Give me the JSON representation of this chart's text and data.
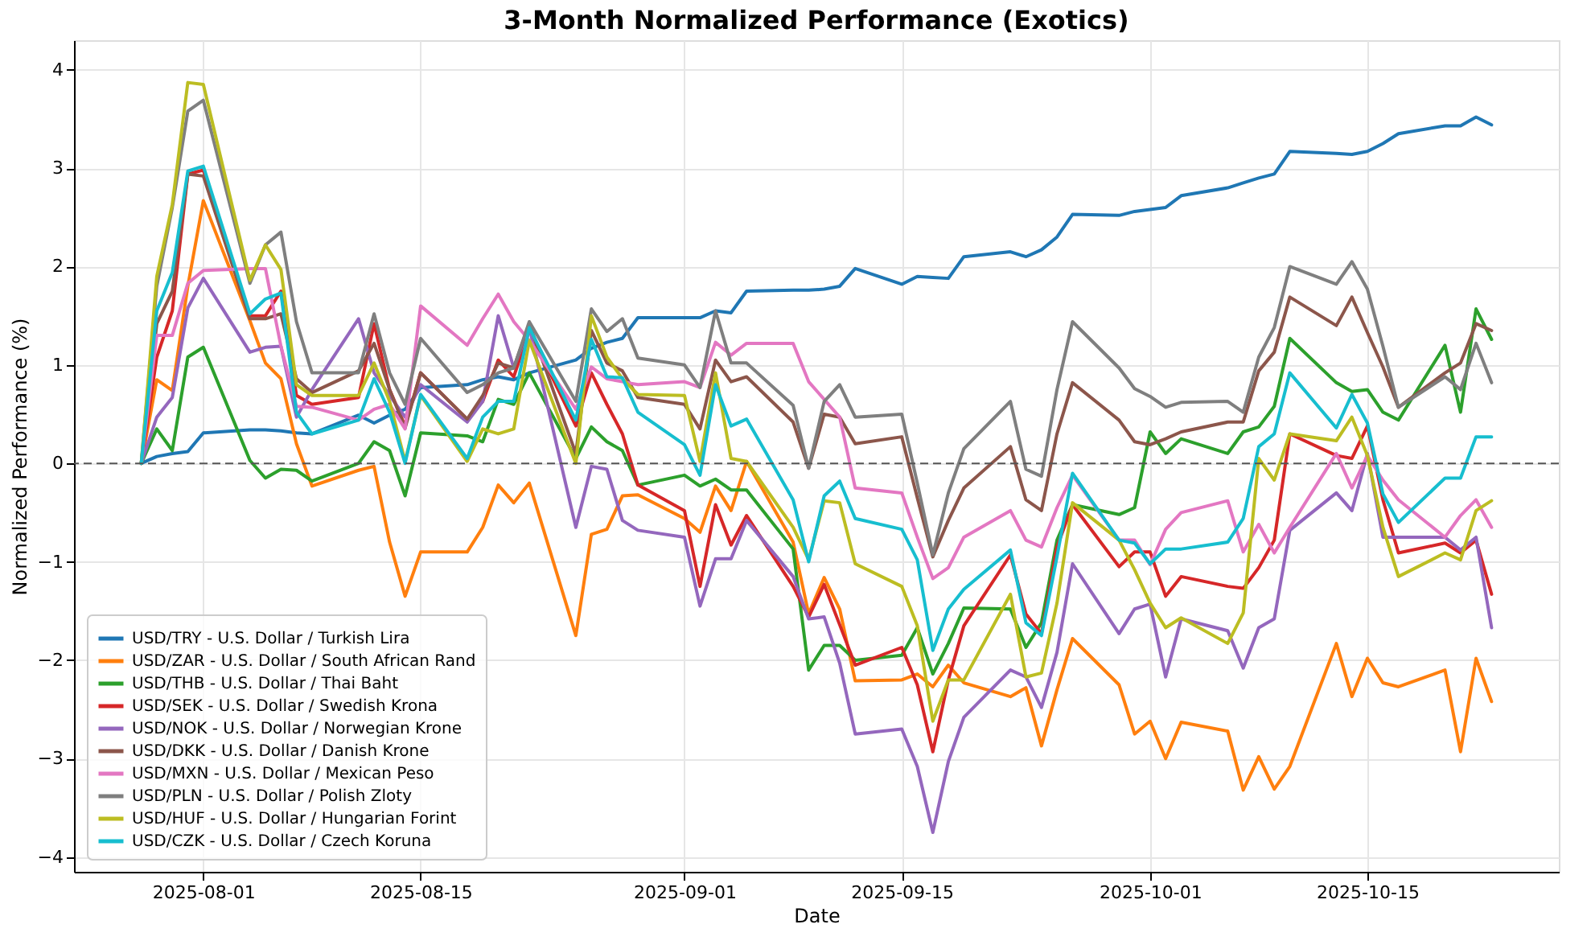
{
  "chart_data": {
    "type": "line",
    "title": "3-Month Normalized Performance (Exotics)",
    "xlabel": "Date",
    "ylabel": "Normalized Performance (%)",
    "x": [
      "2025-07-28",
      "2025-07-29",
      "2025-07-30",
      "2025-07-31",
      "2025-08-01",
      "2025-08-04",
      "2025-08-05",
      "2025-08-06",
      "2025-08-07",
      "2025-08-08",
      "2025-08-11",
      "2025-08-12",
      "2025-08-13",
      "2025-08-14",
      "2025-08-15",
      "2025-08-18",
      "2025-08-19",
      "2025-08-20",
      "2025-08-21",
      "2025-08-22",
      "2025-08-25",
      "2025-08-26",
      "2025-08-27",
      "2025-08-28",
      "2025-08-29",
      "2025-09-01",
      "2025-09-02",
      "2025-09-03",
      "2025-09-04",
      "2025-09-05",
      "2025-09-08",
      "2025-09-09",
      "2025-09-10",
      "2025-09-11",
      "2025-09-12",
      "2025-09-15",
      "2025-09-16",
      "2025-09-17",
      "2025-09-18",
      "2025-09-19",
      "2025-09-22",
      "2025-09-23",
      "2025-09-24",
      "2025-09-25",
      "2025-09-26",
      "2025-09-29",
      "2025-09-30",
      "2025-10-01",
      "2025-10-02",
      "2025-10-03",
      "2025-10-06",
      "2025-10-07",
      "2025-10-08",
      "2025-10-09",
      "2025-10-10",
      "2025-10-13",
      "2025-10-14",
      "2025-10-15",
      "2025-10-16",
      "2025-10-17",
      "2025-10-20",
      "2025-10-21",
      "2025-10-22",
      "2025-10-23"
    ],
    "series": [
      {
        "name": "USD/TRY - U.S. Dollar / Turkish Lira",
        "color": "#1f77b4",
        "values": [
          0,
          0.07,
          0.1,
          0.12,
          0.31,
          0.34,
          0.34,
          0.33,
          0.31,
          0.3,
          0.49,
          0.41,
          0.49,
          0.55,
          0.77,
          0.8,
          0.85,
          0.88,
          0.85,
          0.92,
          1.05,
          1.17,
          1.23,
          1.27,
          1.48,
          1.48,
          1.48,
          1.55,
          1.53,
          1.75,
          1.76,
          1.76,
          1.77,
          1.8,
          1.98,
          1.82,
          1.9,
          1.89,
          1.88,
          2.1,
          2.15,
          2.1,
          2.17,
          2.3,
          2.53,
          2.52,
          2.56,
          2.58,
          2.6,
          2.72,
          2.8,
          2.85,
          2.9,
          2.94,
          3.17,
          3.15,
          3.14,
          3.17,
          3.25,
          3.35,
          3.43,
          3.43,
          3.52,
          3.44
        ]
      },
      {
        "name": "USD/ZAR - U.S. Dollar / South African Rand",
        "color": "#ff7f0e",
        "values": [
          0,
          0.85,
          0.74,
          1.8,
          2.67,
          1.45,
          1.02,
          0.86,
          0.2,
          -0.23,
          -0.07,
          -0.03,
          -0.8,
          -1.35,
          -0.9,
          -0.9,
          -0.65,
          -0.22,
          -0.4,
          -0.2,
          -1.75,
          -0.72,
          -0.67,
          -0.33,
          -0.32,
          -0.56,
          -0.7,
          -0.23,
          -0.48,
          0.02,
          -0.8,
          -1.53,
          -1.16,
          -1.48,
          -2.21,
          -2.2,
          -2.14,
          -2.27,
          -2.05,
          -2.23,
          -2.37,
          -2.28,
          -2.87,
          -2.3,
          -1.78,
          -2.25,
          -2.75,
          -2.62,
          -3.0,
          -2.63,
          -2.72,
          -3.32,
          -2.98,
          -3.31,
          -3.08,
          -1.83,
          -2.37,
          -1.98,
          -2.23,
          -2.27,
          -2.1,
          -2.93,
          -1.98,
          -2.42
        ]
      },
      {
        "name": "USD/THB - U.S. Dollar / Thai Baht",
        "color": "#2ca02c",
        "values": [
          0,
          0.35,
          0.13,
          1.08,
          1.18,
          0.03,
          -0.15,
          -0.06,
          -0.07,
          -0.18,
          0.0,
          0.22,
          0.13,
          -0.33,
          0.31,
          0.28,
          0.22,
          0.65,
          0.6,
          0.92,
          0.05,
          0.37,
          0.22,
          0.13,
          -0.22,
          -0.12,
          -0.23,
          -0.16,
          -0.27,
          -0.27,
          -0.87,
          -2.1,
          -1.85,
          -1.85,
          -2.0,
          -1.95,
          -1.67,
          -2.14,
          -1.83,
          -1.47,
          -1.48,
          -1.87,
          -1.62,
          -0.78,
          -0.42,
          -0.52,
          -0.45,
          0.32,
          0.1,
          0.25,
          0.1,
          0.32,
          0.37,
          0.58,
          1.27,
          0.82,
          0.73,
          0.75,
          0.52,
          0.44,
          1.2,
          0.52,
          1.57,
          1.26
        ]
      },
      {
        "name": "USD/SEK - U.S. Dollar / Swedish Krona",
        "color": "#d62728",
        "values": [
          0,
          1.08,
          1.55,
          2.94,
          2.98,
          1.5,
          1.5,
          1.75,
          0.69,
          0.6,
          0.67,
          1.42,
          0.75,
          0.38,
          0.92,
          0.45,
          0.63,
          1.05,
          0.88,
          1.35,
          0.38,
          0.92,
          0.6,
          0.3,
          -0.22,
          -0.48,
          -1.25,
          -0.42,
          -0.83,
          -0.53,
          -1.25,
          -1.56,
          -1.23,
          -1.64,
          -2.05,
          -1.87,
          -2.25,
          -2.93,
          -2.2,
          -1.65,
          -0.93,
          -1.53,
          -1.73,
          -0.85,
          -0.42,
          -1.05,
          -0.9,
          -0.9,
          -1.35,
          -1.15,
          -1.25,
          -1.27,
          -1.06,
          -0.78,
          0.3,
          0.08,
          0.05,
          0.38,
          -0.37,
          -0.91,
          -0.81,
          -0.91,
          -0.78,
          -1.33
        ]
      },
      {
        "name": "USD/NOK - U.S. Dollar / Norwegian Krone",
        "color": "#9467bd",
        "values": [
          0,
          0.47,
          0.67,
          1.58,
          1.88,
          1.13,
          1.18,
          1.19,
          0.47,
          0.75,
          1.47,
          0.92,
          0.69,
          0.47,
          0.8,
          0.42,
          0.63,
          1.5,
          0.97,
          1.38,
          -0.65,
          -0.03,
          -0.06,
          -0.58,
          -0.68,
          -0.75,
          -1.45,
          -0.97,
          -0.97,
          -0.58,
          -1.15,
          -1.58,
          -1.56,
          -2.03,
          -2.75,
          -2.7,
          -3.08,
          -3.75,
          -3.03,
          -2.58,
          -2.1,
          -2.17,
          -2.48,
          -1.92,
          -1.02,
          -1.73,
          -1.48,
          -1.43,
          -2.17,
          -1.58,
          -1.7,
          -2.08,
          -1.67,
          -1.58,
          -0.68,
          -0.3,
          -0.48,
          0.1,
          -0.75,
          -0.75,
          -0.75,
          -0.88,
          -0.75,
          -1.67
        ]
      },
      {
        "name": "USD/DKK - U.S. Dollar / Danish Krone",
        "color": "#8c564b",
        "values": [
          0,
          1.42,
          1.75,
          2.94,
          2.92,
          1.47,
          1.47,
          1.52,
          0.86,
          0.72,
          0.94,
          1.22,
          0.75,
          0.36,
          0.92,
          0.45,
          0.69,
          1.02,
          0.97,
          1.42,
          0.1,
          1.35,
          1.02,
          0.94,
          0.67,
          0.6,
          0.35,
          1.05,
          0.83,
          0.88,
          0.42,
          -0.05,
          0.5,
          0.47,
          0.2,
          0.27,
          -0.35,
          -0.95,
          -0.58,
          -0.25,
          0.17,
          -0.37,
          -0.48,
          0.3,
          0.82,
          0.44,
          0.22,
          0.19,
          0.25,
          0.32,
          0.42,
          0.42,
          0.94,
          1.13,
          1.69,
          1.4,
          1.69,
          1.33,
          0.98,
          0.57,
          0.92,
          1.02,
          1.42,
          1.35
        ]
      },
      {
        "name": "USD/MXN - U.S. Dollar / Mexican Peso",
        "color": "#e377c2",
        "values": [
          0,
          1.3,
          1.3,
          1.83,
          1.96,
          1.98,
          1.98,
          1.19,
          0.58,
          0.57,
          0.44,
          0.55,
          0.6,
          0.35,
          1.6,
          1.2,
          1.47,
          1.72,
          1.44,
          1.25,
          0.55,
          0.98,
          0.86,
          0.83,
          0.8,
          0.83,
          0.77,
          1.23,
          1.1,
          1.22,
          1.22,
          0.83,
          0.65,
          0.47,
          -0.25,
          -0.3,
          -0.75,
          -1.17,
          -1.06,
          -0.75,
          -0.48,
          -0.78,
          -0.85,
          -0.45,
          -0.12,
          -0.78,
          -0.78,
          -1.03,
          -0.67,
          -0.5,
          -0.38,
          -0.9,
          -0.62,
          -0.91,
          -0.65,
          0.1,
          -0.25,
          0.08,
          -0.17,
          -0.37,
          -0.75,
          -0.53,
          -0.37,
          -0.65
        ]
      },
      {
        "name": "USD/PLN - U.S. Dollar / Polish Zloty",
        "color": "#7f7f7f",
        "values": [
          0,
          1.8,
          2.6,
          3.58,
          3.69,
          1.83,
          2.22,
          2.35,
          1.44,
          0.92,
          0.92,
          1.52,
          0.92,
          0.6,
          1.27,
          0.72,
          0.8,
          0.92,
          0.97,
          1.44,
          0.63,
          1.57,
          1.34,
          1.47,
          1.07,
          1.0,
          0.77,
          1.55,
          1.02,
          1.02,
          0.59,
          -0.05,
          0.63,
          0.8,
          0.47,
          0.5,
          -0.2,
          -0.93,
          -0.3,
          0.15,
          0.63,
          -0.06,
          -0.13,
          0.75,
          1.44,
          0.97,
          0.76,
          0.68,
          0.57,
          0.62,
          0.63,
          0.52,
          1.08,
          1.38,
          2.0,
          1.82,
          2.05,
          1.77,
          1.19,
          0.57,
          0.88,
          0.75,
          1.22,
          0.82
        ]
      },
      {
        "name": "USD/HUF - U.S. Dollar / Hungarian Forint",
        "color": "#bcbd22",
        "values": [
          0,
          1.9,
          2.63,
          3.87,
          3.85,
          1.86,
          2.22,
          1.97,
          0.8,
          0.69,
          0.69,
          1.02,
          0.63,
          0.02,
          0.69,
          0.02,
          0.35,
          0.3,
          0.35,
          1.25,
          0.0,
          1.5,
          1.08,
          0.86,
          0.7,
          0.69,
          0.02,
          0.92,
          0.05,
          0.02,
          -0.65,
          -0.98,
          -0.38,
          -0.4,
          -1.02,
          -1.25,
          -1.65,
          -2.62,
          -2.2,
          -2.2,
          -1.33,
          -2.17,
          -2.13,
          -1.42,
          -0.4,
          -0.78,
          -1.08,
          -1.42,
          -1.67,
          -1.57,
          -1.83,
          -1.52,
          0.05,
          -0.17,
          0.3,
          0.23,
          0.47,
          0.08,
          -0.65,
          -1.15,
          -0.91,
          -0.98,
          -0.48,
          -0.38
        ]
      },
      {
        "name": "USD/CZK - U.S. Dollar / Czech Koruna",
        "color": "#17becf",
        "values": [
          0,
          1.55,
          1.94,
          2.97,
          3.02,
          1.52,
          1.67,
          1.73,
          0.52,
          0.3,
          0.44,
          0.86,
          0.52,
          0.0,
          0.7,
          0.05,
          0.47,
          0.63,
          0.63,
          1.38,
          0.44,
          1.26,
          0.88,
          0.87,
          0.52,
          0.19,
          -0.12,
          0.8,
          0.38,
          0.45,
          -0.37,
          -1.0,
          -0.33,
          -0.18,
          -0.56,
          -0.67,
          -0.98,
          -1.9,
          -1.48,
          -1.28,
          -0.88,
          -1.62,
          -1.75,
          -0.95,
          -0.1,
          -0.78,
          -0.81,
          -1.02,
          -0.87,
          -0.87,
          -0.8,
          -0.56,
          0.17,
          0.3,
          0.92,
          0.36,
          0.7,
          0.41,
          -0.31,
          -0.6,
          -0.15,
          -0.15,
          0.27,
          0.27
        ]
      }
    ],
    "xlim": [
      "2025-07-23T16:00",
      "2025-10-27T08:00"
    ],
    "ylim": [
      -4.15,
      4.3
    ],
    "xticks": [
      "2025-08-01",
      "2025-08-15",
      "2025-09-01",
      "2025-09-15",
      "2025-10-01",
      "2025-10-15"
    ],
    "yticks": [
      -4,
      -3,
      -2,
      -1,
      0,
      1,
      2,
      3,
      4
    ],
    "ref_lines": [
      {
        "axis": "y",
        "value": 0,
        "color": "#555555",
        "line_style": "dashed"
      }
    ],
    "grid": true,
    "legend": "bottom left"
  }
}
